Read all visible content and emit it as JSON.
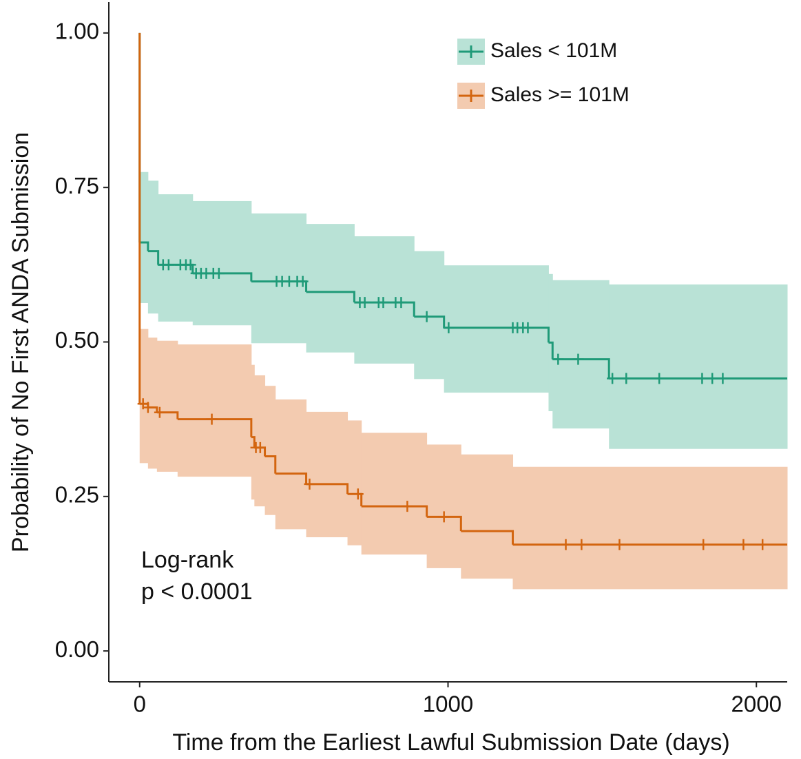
{
  "chart_data": {
    "type": "survival",
    "x_label": "Time from the Earliest Lawful Submission Date (days)",
    "y_label": "Probability of No First ANDA Submission",
    "annotation": [
      "Log-rank",
      "p < 0.0001"
    ],
    "xlim": [
      -100,
      2100
    ],
    "ylim": [
      -0.05,
      1.05
    ],
    "xticks": [
      0,
      1000,
      2000
    ],
    "yticks": [
      {
        "value": 0,
        "label": "0.00"
      },
      {
        "value": 0.25,
        "label": "0.25"
      },
      {
        "value": 0.5,
        "label": "0.50"
      },
      {
        "value": 0.75,
        "label": "0.75"
      },
      {
        "value": 1,
        "label": "1.00"
      }
    ],
    "series": [
      {
        "name": "Sales < 101M",
        "color": "#1f9a78",
        "band_color": "#b9e2d6",
        "x": [
          0,
          0,
          27,
          60,
          172,
          362,
          540,
          696,
          890,
          987,
          1326,
          1339,
          1522
        ],
        "values": [
          1,
          0.661,
          0.647,
          0.625,
          0.611,
          0.598,
          0.581,
          0.564,
          0.541,
          0.523,
          0.499,
          0.472,
          0.441
        ],
        "lower": [
          1,
          0.563,
          0.546,
          0.533,
          0.527,
          0.498,
          0.483,
          0.465,
          0.44,
          0.418,
          0.388,
          0.36,
          0.327
        ],
        "upper": [
          1,
          0.775,
          0.761,
          0.739,
          0.728,
          0.708,
          0.691,
          0.671,
          0.647,
          0.624,
          0.61,
          0.6,
          0.593
        ],
        "censor_x": [
          76,
          94,
          132,
          150,
          165,
          183,
          199,
          216,
          239,
          257,
          444,
          462,
          485,
          511,
          529,
          714,
          730,
          775,
          790,
          830,
          848,
          931,
          1002,
          1210,
          1225,
          1243,
          1259,
          1357,
          1422,
          1533,
          1578,
          1685,
          1824,
          1857,
          1891
        ],
        "censor_values": [
          0.625,
          0.625,
          0.625,
          0.625,
          0.625,
          0.611,
          0.611,
          0.611,
          0.611,
          0.611,
          0.598,
          0.598,
          0.598,
          0.598,
          0.598,
          0.564,
          0.564,
          0.564,
          0.564,
          0.564,
          0.564,
          0.541,
          0.523,
          0.523,
          0.523,
          0.523,
          0.523,
          0.472,
          0.472,
          0.441,
          0.441,
          0.441,
          0.441,
          0.441,
          0.441
        ]
      },
      {
        "name": "Sales >= 101M",
        "color": "#d3650f",
        "band_color": "#f3cbb0",
        "x": [
          0,
          0,
          27,
          56,
          123,
          362,
          372,
          406,
          440,
          540,
          674,
          719,
          931,
          1042,
          1210
        ],
        "values": [
          1,
          0.4,
          0.394,
          0.386,
          0.375,
          0.346,
          0.329,
          0.315,
          0.287,
          0.27,
          0.254,
          0.234,
          0.217,
          0.194,
          0.172
        ],
        "lower": [
          1,
          0.304,
          0.295,
          0.29,
          0.282,
          0.245,
          0.234,
          0.22,
          0.197,
          0.184,
          0.171,
          0.156,
          0.134,
          0.117,
          0.1
        ],
        "upper": [
          1,
          0.521,
          0.507,
          0.502,
          0.496,
          0.463,
          0.446,
          0.429,
          0.407,
          0.387,
          0.373,
          0.353,
          0.334,
          0.318,
          0.298
        ],
        "censor_x": [
          11,
          27,
          65,
          234,
          377,
          391,
          551,
          708,
          868,
          987,
          1382,
          1433,
          1556,
          1828,
          1958,
          2020
        ],
        "censor_values": [
          0.4,
          0.394,
          0.386,
          0.375,
          0.329,
          0.329,
          0.27,
          0.254,
          0.234,
          0.217,
          0.172,
          0.172,
          0.172,
          0.172,
          0.172,
          0.172
        ]
      }
    ]
  }
}
